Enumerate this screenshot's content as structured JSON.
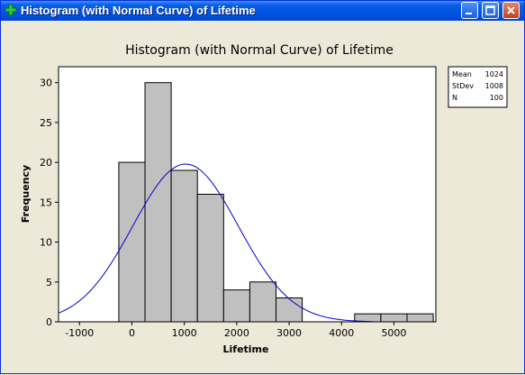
{
  "window": {
    "title": "Histogram (with Normal Curve) of Lifetime",
    "controls": {
      "minimize": "minimize",
      "maximize": "maximize",
      "close": "close"
    }
  },
  "chart_data": {
    "type": "bar",
    "title": "Histogram (with Normal Curve) of Lifetime",
    "xlabel": "Lifetime",
    "ylabel": "Frequency",
    "xlim": [
      -1400,
      5800
    ],
    "ylim": [
      0,
      32
    ],
    "xticks": [
      -1000,
      0,
      1000,
      2000,
      3000,
      4000,
      5000
    ],
    "yticks": [
      0,
      5,
      10,
      15,
      20,
      25,
      30
    ],
    "bin_width": 500,
    "bins": [
      {
        "x0": -250,
        "x1": 250,
        "count": 20
      },
      {
        "x0": 250,
        "x1": 750,
        "count": 30
      },
      {
        "x0": 750,
        "x1": 1250,
        "count": 19
      },
      {
        "x0": 1250,
        "x1": 1750,
        "count": 16
      },
      {
        "x0": 1750,
        "x1": 2250,
        "count": 4
      },
      {
        "x0": 2250,
        "x1": 2750,
        "count": 5
      },
      {
        "x0": 2750,
        "x1": 3250,
        "count": 3
      },
      {
        "x0": 3250,
        "x1": 3750,
        "count": 0
      },
      {
        "x0": 3750,
        "x1": 4250,
        "count": 0
      },
      {
        "x0": 4250,
        "x1": 4750,
        "count": 1
      },
      {
        "x0": 4750,
        "x1": 5250,
        "count": 1
      },
      {
        "x0": 5250,
        "x1": 5750,
        "count": 1
      }
    ],
    "normal_curve": {
      "mean": 1024,
      "stdev": 1008,
      "n": 100,
      "color": "#0000cc"
    },
    "bar_color": "#c0c0c0",
    "legend": {
      "placement": "top-right",
      "entries": [
        {
          "label": "Mean",
          "value": "1024"
        },
        {
          "label": "StDev",
          "value": "1008"
        },
        {
          "label": "N",
          "value": "100"
        }
      ]
    }
  }
}
